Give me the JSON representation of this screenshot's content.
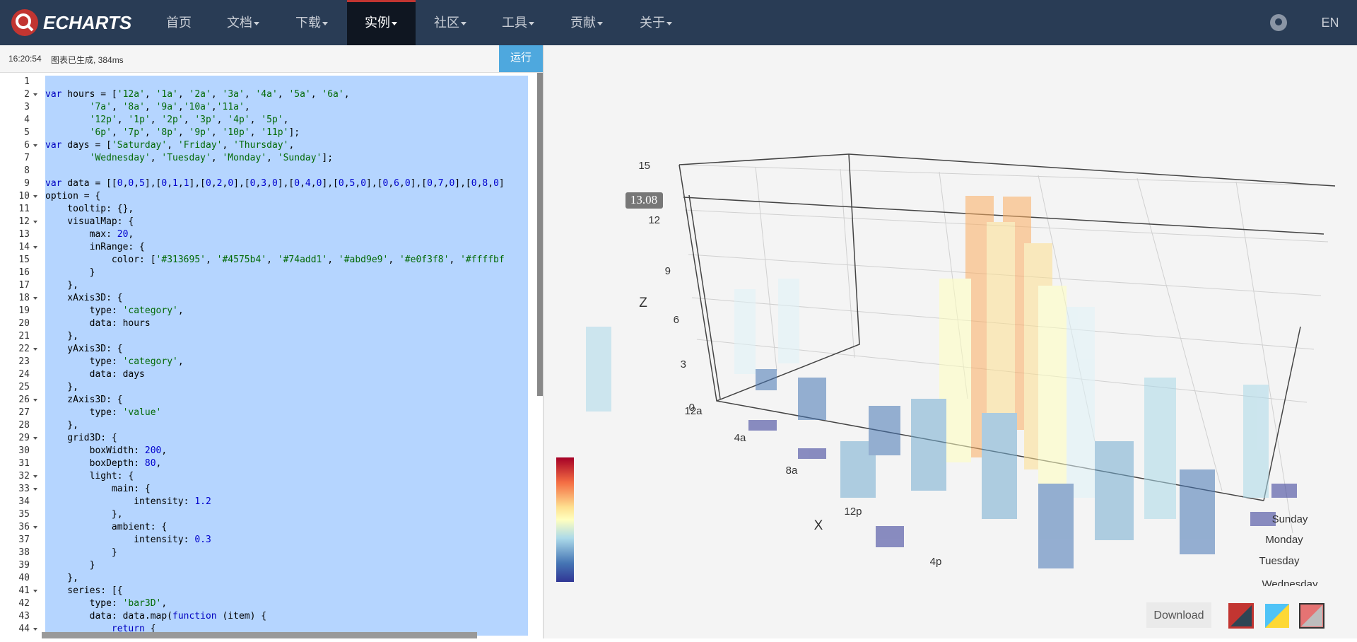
{
  "nav": {
    "logo": "ECHARTS",
    "items": [
      "首页",
      "文档",
      "下载",
      "实例",
      "社区",
      "工具",
      "贡献",
      "关于"
    ],
    "active": 3,
    "lang": "EN"
  },
  "status": {
    "time": "16:20:54",
    "message": "图表已生成, 384ms",
    "run": "运行"
  },
  "editor": {
    "line_numbers": [
      1,
      2,
      3,
      4,
      5,
      6,
      7,
      8,
      9,
      10,
      11,
      12,
      13,
      14,
      15,
      16,
      17,
      18,
      19,
      20,
      21,
      22,
      23,
      24,
      25,
      26,
      27,
      28,
      29,
      30,
      31,
      32,
      33,
      34,
      35,
      36,
      37,
      38,
      39,
      40,
      41,
      42,
      43,
      44
    ],
    "code": [
      null,
      "var hours = ['12a', '1a', '2a', '3a', '4a', '5a', '6a',",
      "        '7a', '8a', '9a','10a','11a',",
      "        '12p', '1p', '2p', '3p', '4p', '5p',",
      "        '6p', '7p', '8p', '9p', '10p', '11p'];",
      "var days = ['Saturday', 'Friday', 'Thursday',",
      "        'Wednesday', 'Tuesday', 'Monday', 'Sunday'];",
      null,
      "var data = [[0,0,5],[0,1,1],[0,2,0],[0,3,0],[0,4,0],[0,5,0],[0,6,0],[0,7,0],[0,8,0]",
      "option = {",
      "    tooltip: {},",
      "    visualMap: {",
      "        max: 20,",
      "        inRange: {",
      "            color: ['#313695', '#4575b4', '#74add1', '#abd9e9', '#e0f3f8', '#ffffbf",
      "        }",
      "    },",
      "    xAxis3D: {",
      "        type: 'category',",
      "        data: hours",
      "    },",
      "    yAxis3D: {",
      "        type: 'category',",
      "        data: days",
      "    },",
      "    zAxis3D: {",
      "        type: 'value'",
      "    },",
      "    grid3D: {",
      "        boxWidth: 200,",
      "        boxDepth: 80,",
      "        light: {",
      "            main: {",
      "                intensity: 1.2",
      "            },",
      "            ambient: {",
      "                intensity: 0.3",
      "            }",
      "        }",
      "    },",
      "    series: [{",
      "        type: 'bar3D',",
      "        data: data.map(function (item) {",
      "            return {"
    ]
  },
  "chart": {
    "z_ticks": [
      15,
      12,
      9,
      6,
      3,
      0
    ],
    "z_label": "Z",
    "x_label": "X",
    "x_ticks": [
      "12a",
      "4a",
      "8a",
      "12p",
      "4p"
    ],
    "y_ticks": [
      "Sunday",
      "Monday",
      "Tuesday",
      "Wednesday"
    ],
    "tooltip": 13.08,
    "download": "Download"
  }
}
